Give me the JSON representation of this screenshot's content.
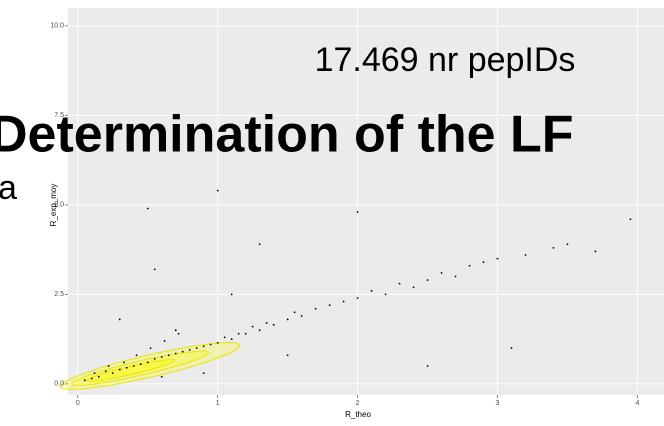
{
  "chart_data": {
    "type": "scatter",
    "x_label": "R_theo",
    "y_label": "R_exp_moy",
    "x": [
      0.05,
      0.1,
      0.12,
      0.15,
      0.2,
      0.22,
      0.25,
      0.3,
      0.33,
      0.35,
      0.4,
      0.42,
      0.45,
      0.5,
      0.52,
      0.55,
      0.6,
      0.62,
      0.65,
      0.7,
      0.72,
      0.75,
      0.8,
      0.85,
      0.9,
      0.95,
      1.0,
      1.05,
      1.1,
      1.15,
      1.2,
      1.25,
      1.3,
      1.35,
      1.4,
      1.5,
      1.55,
      1.6,
      1.7,
      1.8,
      1.9,
      2.0,
      2.1,
      2.2,
      2.3,
      2.4,
      2.5,
      2.6,
      2.7,
      2.8,
      2.9,
      3.0,
      3.2,
      3.4,
      3.5,
      3.7,
      3.95,
      0.5,
      0.7,
      0.9,
      1.1,
      0.3,
      0.6,
      1.5,
      2.5,
      0.55,
      1.0,
      1.3,
      2.0,
      3.1
    ],
    "values": [
      0.1,
      0.15,
      0.3,
      0.2,
      0.35,
      0.5,
      0.3,
      0.4,
      0.6,
      0.45,
      0.5,
      0.8,
      0.55,
      0.6,
      1.0,
      0.7,
      0.75,
      1.2,
      0.8,
      0.85,
      1.4,
      0.9,
      0.95,
      1.0,
      1.05,
      1.1,
      1.15,
      1.3,
      1.25,
      1.4,
      1.4,
      1.6,
      1.5,
      1.7,
      1.65,
      1.8,
      2.0,
      1.9,
      2.1,
      2.2,
      2.3,
      2.4,
      2.6,
      2.5,
      2.8,
      2.7,
      2.9,
      3.1,
      3.0,
      3.3,
      3.4,
      3.5,
      3.6,
      3.8,
      3.9,
      3.7,
      4.6,
      4.9,
      1.5,
      0.3,
      2.5,
      1.8,
      0.2,
      0.8,
      0.5,
      3.2,
      5.4,
      3.9,
      4.8,
      1.0
    ],
    "color": "#000000",
    "xlim": [
      -0.07,
      4.19
    ],
    "ylim": [
      -0.31,
      10.5
    ],
    "xticks": [
      0,
      1,
      2,
      3,
      4
    ],
    "yticks": [
      {
        "value": 0,
        "label": "0.0"
      },
      2.5,
      {
        "value": 5,
        "label": "5.0"
      },
      7.5,
      {
        "value": 10,
        "label": "10.0"
      }
    ],
    "grid": true
  },
  "slide": {
    "subtitle": "17.469 nr pepIDs",
    "title": "Determination of the LF",
    "fragment": "a"
  }
}
